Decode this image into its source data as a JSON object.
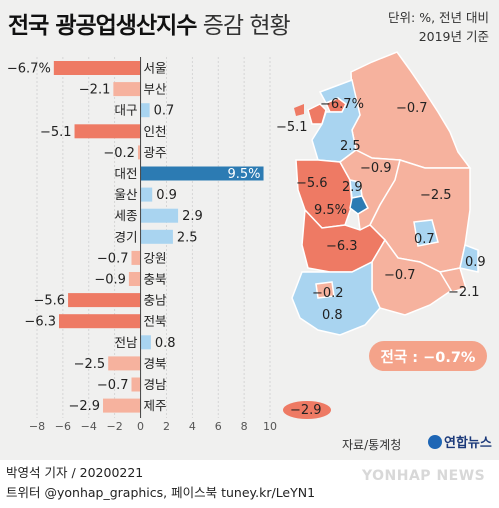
{
  "title": {
    "bold": "전국 광공업생산지수",
    "normal": "증감 현황"
  },
  "unit_note": {
    "line1": "단위: %, 전년 대비",
    "line2": "2019년 기준"
  },
  "total_label": "전국 : −0.7%",
  "source": "자료/통계청",
  "brand": "연합뉴스",
  "credit": {
    "line1": "박영석 기자 / 20200221",
    "line2": "트위터 @yonhap_graphics, 페이스북 tuney.kr/LeYN1"
  },
  "watermark": "YONHAP NEWS",
  "colors": {
    "neg_dark": "#ee7a64",
    "neg_light": "#f6b29e",
    "pos_light": "#a9d4f0",
    "pos_dark": "#2c7bb3"
  },
  "chart_data": {
    "type": "bar",
    "orientation": "horizontal",
    "categories": [
      "서울",
      "부산",
      "대구",
      "인천",
      "광주",
      "대전",
      "울산",
      "세종",
      "경기",
      "강원",
      "충북",
      "충남",
      "전북",
      "전남",
      "경북",
      "경남",
      "제주"
    ],
    "value_labels": [
      "−6.7%",
      "−2.1",
      "0.7",
      "−5.1",
      "−0.2",
      "9.5%",
      "0.9",
      "2.9",
      "2.5",
      "−0.7",
      "−0.9",
      "−5.6",
      "−6.3",
      "0.8",
      "−2.5",
      "−0.7",
      "−2.9"
    ],
    "values": [
      -6.7,
      -2.1,
      0.7,
      -5.1,
      -0.2,
      9.5,
      0.9,
      2.9,
      2.5,
      -0.7,
      -0.9,
      -5.6,
      -6.3,
      0.8,
      -2.5,
      -0.7,
      -2.9
    ],
    "xlim": [
      -8,
      10
    ],
    "xticks": [
      "−8",
      "−6",
      "−4",
      "−2",
      "0",
      "2",
      "4",
      "6",
      "8",
      "10"
    ],
    "xtick_values": [
      -8,
      -6,
      -4,
      -2,
      0,
      2,
      4,
      6,
      8,
      10
    ]
  },
  "map_labels": [
    {
      "text": "−6.7%"
    },
    {
      "text": "−5.1"
    },
    {
      "text": "−0.7"
    },
    {
      "text": "2.5"
    },
    {
      "text": "−0.9"
    },
    {
      "text": "−5.6"
    },
    {
      "text": "2.9"
    },
    {
      "text": "9.5%"
    },
    {
      "text": "−2.5"
    },
    {
      "text": "0.7"
    },
    {
      "text": "−6.3"
    },
    {
      "text": "−0.7"
    },
    {
      "text": "0.9"
    },
    {
      "text": "−2.1"
    },
    {
      "text": "−0.2"
    },
    {
      "text": "0.8"
    },
    {
      "text": "−2.9"
    }
  ]
}
